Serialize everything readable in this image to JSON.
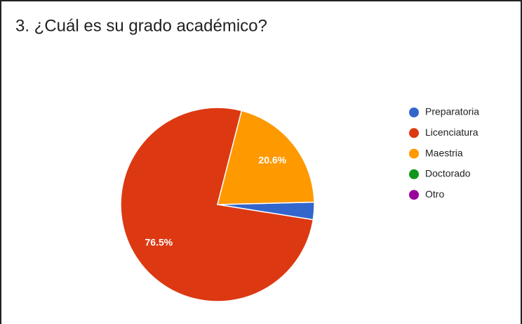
{
  "chart_data": {
    "type": "pie",
    "title": "3. ¿Cuál es su grado académico?",
    "categories": [
      "Preparatoria",
      "Licenciatura",
      "Maestria",
      "Doctorado",
      "Otro"
    ],
    "values": [
      2.9,
      76.5,
      20.6,
      0,
      0
    ],
    "value_labels": [
      null,
      "76.5%",
      "20.6%",
      null,
      null
    ],
    "colors": [
      "#3366cc",
      "#dc3912",
      "#ff9900",
      "#109618",
      "#990099"
    ],
    "legend": "right"
  }
}
